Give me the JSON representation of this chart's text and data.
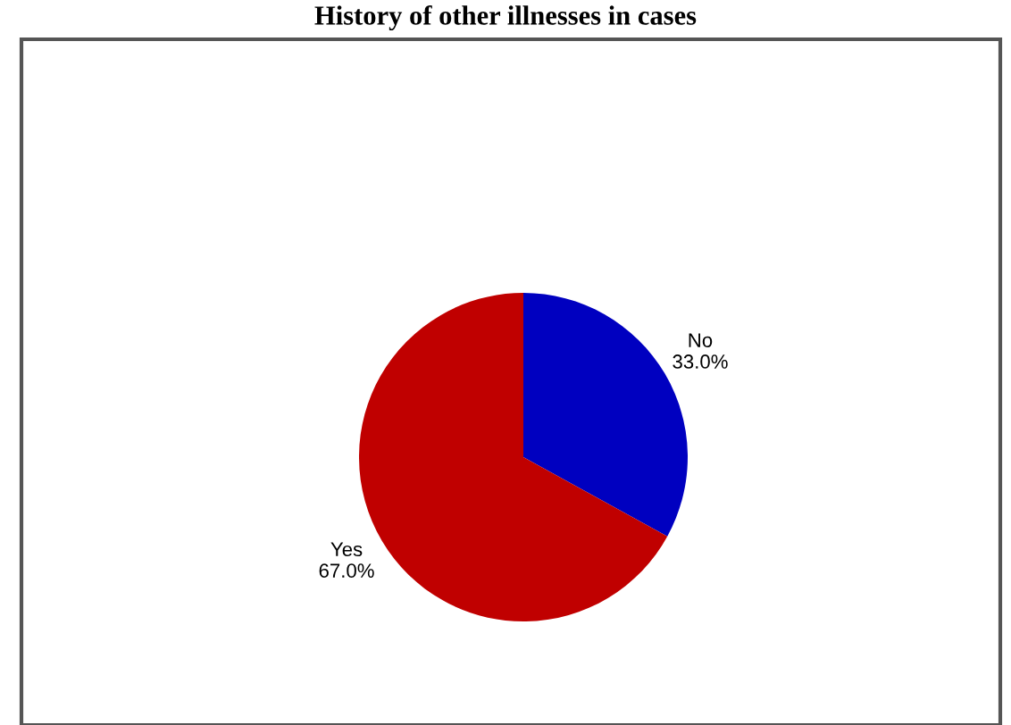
{
  "chart_data": {
    "type": "pie",
    "title": "History of other illnesses in cases",
    "categories": [
      "No",
      "Yes"
    ],
    "values": [
      33.0,
      67.0
    ],
    "colors": [
      "#0000c0",
      "#c00000"
    ],
    "value_labels": [
      "33.0%",
      "67.0%"
    ],
    "legend": false
  }
}
